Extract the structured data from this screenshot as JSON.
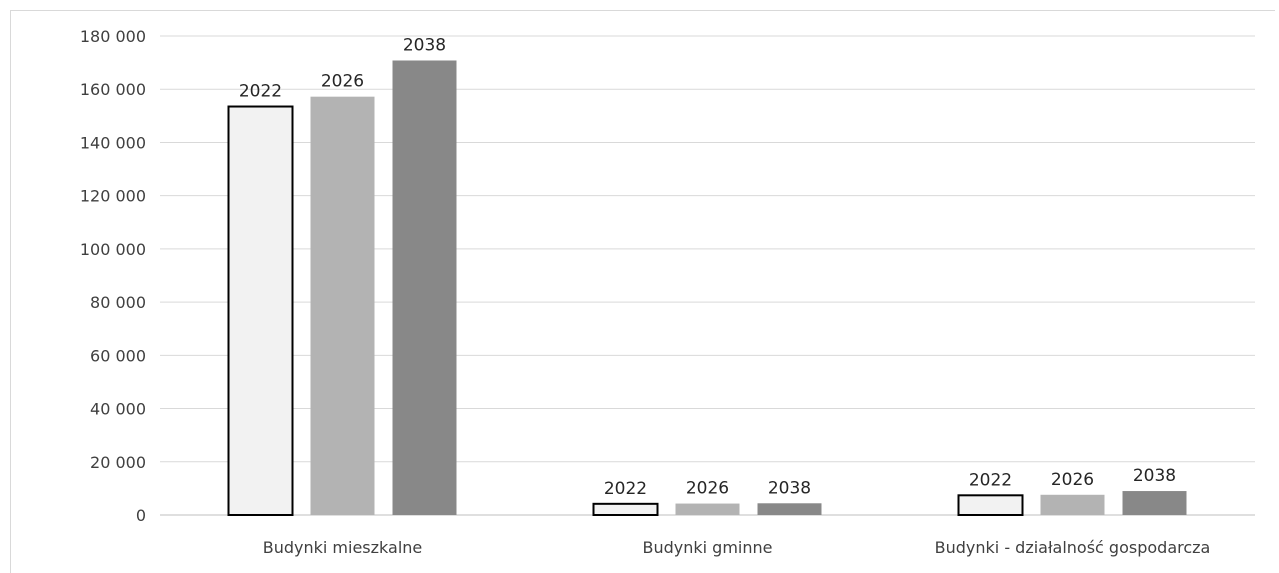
{
  "chart_data": {
    "type": "bar",
    "categories": [
      "Budynki mieszkalne",
      "Budynki gminne",
      "Budynki - działalność gospodarcza"
    ],
    "series": [
      {
        "name": "2022",
        "color": "#f2f2f2",
        "stroke": "#000000",
        "values": [
          153500,
          4200,
          7400
        ]
      },
      {
        "name": "2026",
        "color": "#b3b3b3",
        "stroke": "none",
        "values": [
          157200,
          4300,
          7600
        ]
      },
      {
        "name": "2038",
        "color": "#888888",
        "stroke": "none",
        "values": [
          170800,
          4400,
          9000
        ]
      }
    ],
    "ylim": [
      0,
      180000
    ],
    "yticks": [
      0,
      20000,
      40000,
      60000,
      80000,
      100000,
      120000,
      140000,
      160000,
      180000
    ],
    "ytick_labels": [
      "0",
      "20 000",
      "40 000",
      "60 000",
      "80 000",
      "100 000",
      "120 000",
      "140 000",
      "160 000",
      "180 000"
    ],
    "data_labels": "series-name",
    "grid": true,
    "gridline_color": "#d9d9d9",
    "title": "",
    "xlabel": "",
    "ylabel": ""
  }
}
